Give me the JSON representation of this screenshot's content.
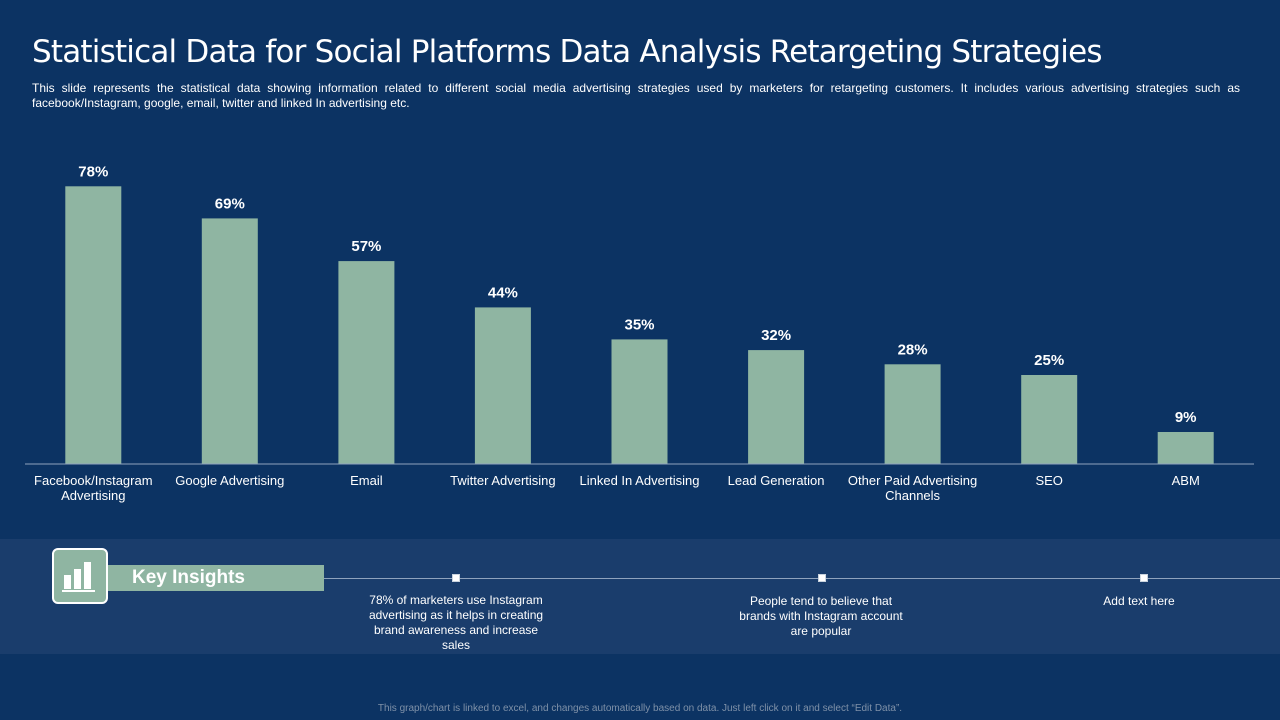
{
  "title": "Statistical Data for Social Platforms Data Analysis Retargeting Strategies",
  "subtitle": "This slide represents the statistical data showing information related to different social media advertising strategies used by marketers for retargeting customers. It includes various advertising strategies such as facebook/Instagram, google, email, twitter and linked In advertising etc.",
  "colors": {
    "background": "#0c3363",
    "bar": "#8fb5a2",
    "band": "#1a3d6c"
  },
  "chart_data": {
    "type": "bar",
    "title": "",
    "xlabel": "",
    "ylabel": "",
    "ylim": [
      0,
      100
    ],
    "categories": [
      [
        "Facebook/Instagram",
        "Advertising"
      ],
      [
        "Google Advertising"
      ],
      [
        "Email"
      ],
      [
        "Twitter Advertising"
      ],
      [
        "Linked In Advertising"
      ],
      [
        "Lead Generation"
      ],
      [
        "Other Paid Advertising",
        "Channels"
      ],
      [
        "SEO"
      ],
      [
        "ABM"
      ]
    ],
    "values": [
      78,
      69,
      57,
      44,
      35,
      32,
      28,
      25,
      9
    ],
    "data_labels": [
      "78%",
      "69%",
      "57%",
      "44%",
      "35%",
      "32%",
      "28%",
      "25%",
      "9%"
    ]
  },
  "insights": {
    "label": "Key Insights",
    "icon": "bar-chart-icon",
    "items": [
      "78% of marketers use Instagram advertising as it helps in creating brand awareness and increase sales",
      "People tend to believe that brands with Instagram account are popular",
      "Add text here"
    ]
  },
  "footer_note": "This graph/chart is linked to excel, and changes automatically based on data. Just left click on it and select “Edit Data”."
}
